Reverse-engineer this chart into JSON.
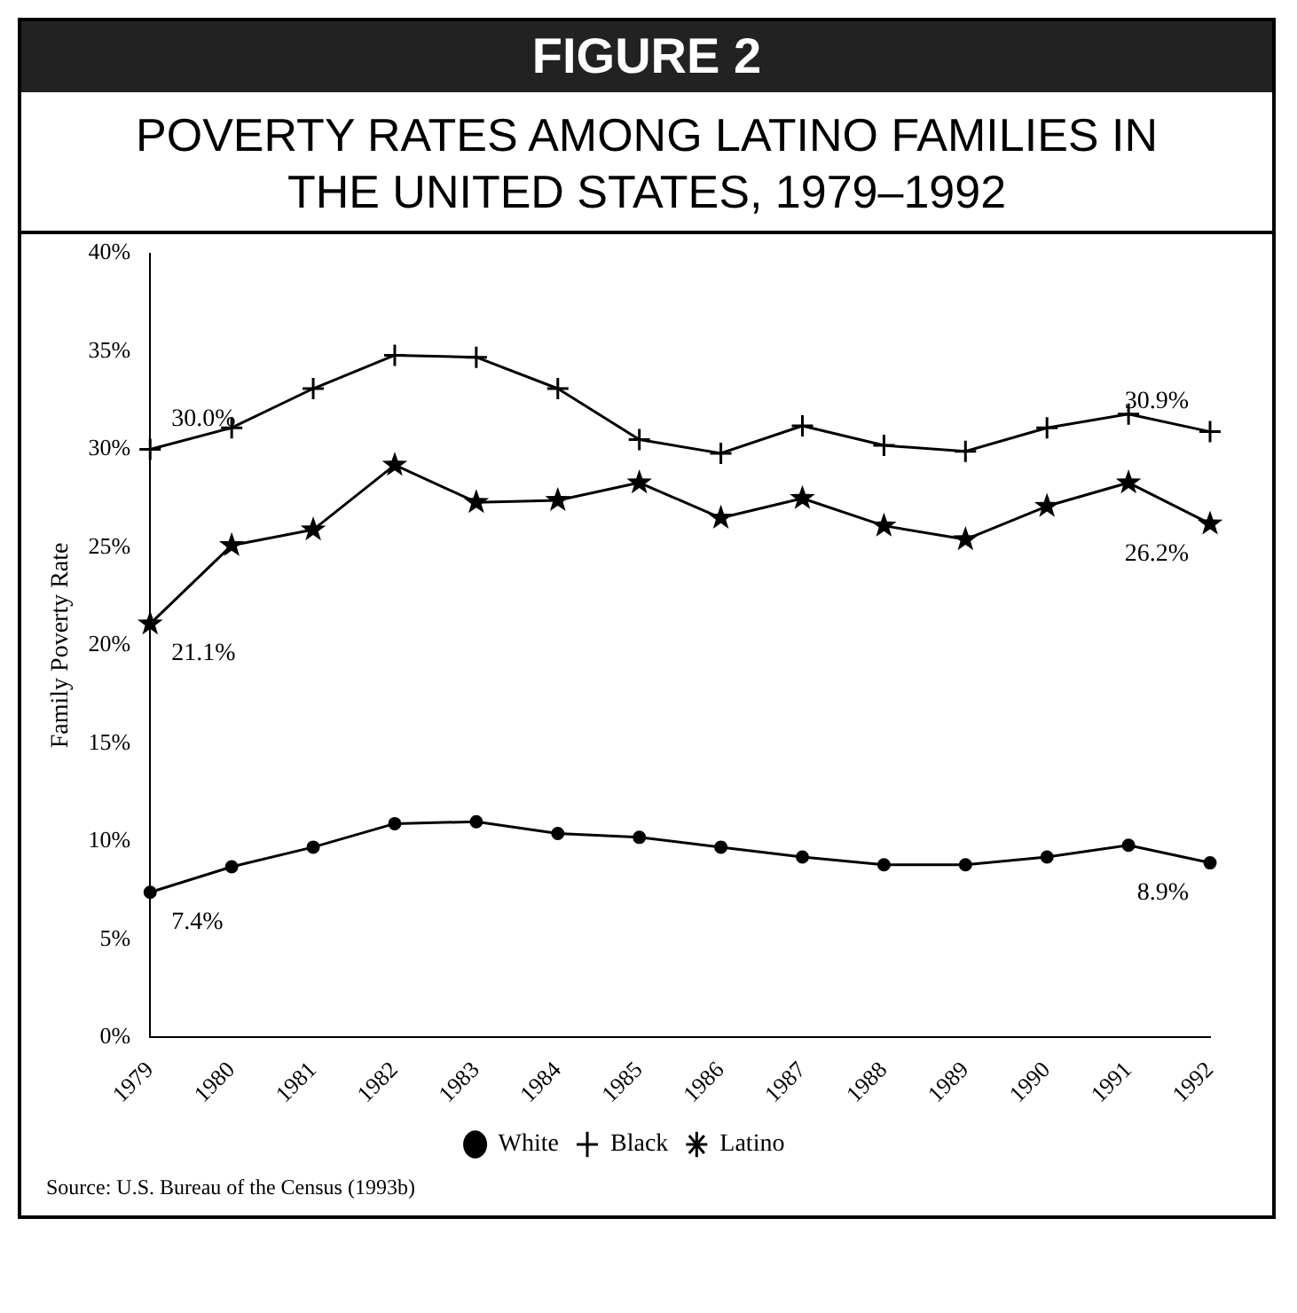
{
  "chart_data": {
    "type": "line",
    "title": "FIGURE 2",
    "subtitle": "POVERTY RATES AMONG LATINO FAMILIES IN THE UNITED STATES, 1979–1992",
    "ylabel": "Family Poverty Rate",
    "categories": [
      "1979",
      "1980",
      "1981",
      "1982",
      "1983",
      "1984",
      "1985",
      "1986",
      "1987",
      "1988",
      "1989",
      "1990",
      "1991",
      "1992"
    ],
    "series": [
      {
        "name": "White",
        "color": "#000000",
        "marker": "circle",
        "values": [
          7.4,
          8.7,
          9.7,
          10.9,
          11.0,
          10.4,
          10.2,
          9.7,
          9.2,
          8.8,
          8.8,
          9.2,
          9.8,
          8.9
        ]
      },
      {
        "name": "Black",
        "color": "#000000",
        "marker": "cross",
        "values": [
          30.0,
          31.1,
          33.1,
          34.8,
          34.7,
          33.1,
          30.5,
          29.8,
          31.2,
          30.2,
          29.9,
          31.1,
          31.8,
          30.9
        ]
      },
      {
        "name": "Latino",
        "color": "#000000",
        "marker": "star",
        "values": [
          21.1,
          25.1,
          25.9,
          29.2,
          27.3,
          27.4,
          28.3,
          26.5,
          27.5,
          26.1,
          25.4,
          27.1,
          28.3,
          26.2
        ]
      }
    ],
    "ylim": [
      0,
      40
    ],
    "yticks": [
      {
        "value": 0,
        "label": "0%"
      },
      {
        "value": 5,
        "label": "5%"
      },
      {
        "value": 10,
        "label": "10%"
      },
      {
        "value": 15,
        "label": "15%"
      },
      {
        "value": 20,
        "label": "20%"
      },
      {
        "value": 25,
        "label": "25%"
      },
      {
        "value": 30,
        "label": "30%"
      },
      {
        "value": 35,
        "label": "35%"
      },
      {
        "value": 40,
        "label": "40%"
      }
    ],
    "grid": false,
    "legend": "bottom",
    "line_style": "solid",
    "annotations": [
      {
        "text": "30.0%",
        "x": "1979",
        "y": 30.0
      },
      {
        "text": "21.1%",
        "x": "1979",
        "y": 21.1
      },
      {
        "text": "7.4%",
        "x": "1979",
        "y": 7.4
      },
      {
        "text": "30.9%",
        "x": "1992",
        "y": 30.9
      },
      {
        "text": "26.2%",
        "x": "1992",
        "y": 26.2
      },
      {
        "text": "8.9%",
        "x": "1992",
        "y": 8.9
      },
      "Source: U.S. Bureau of the Census (1993b)"
    ]
  }
}
